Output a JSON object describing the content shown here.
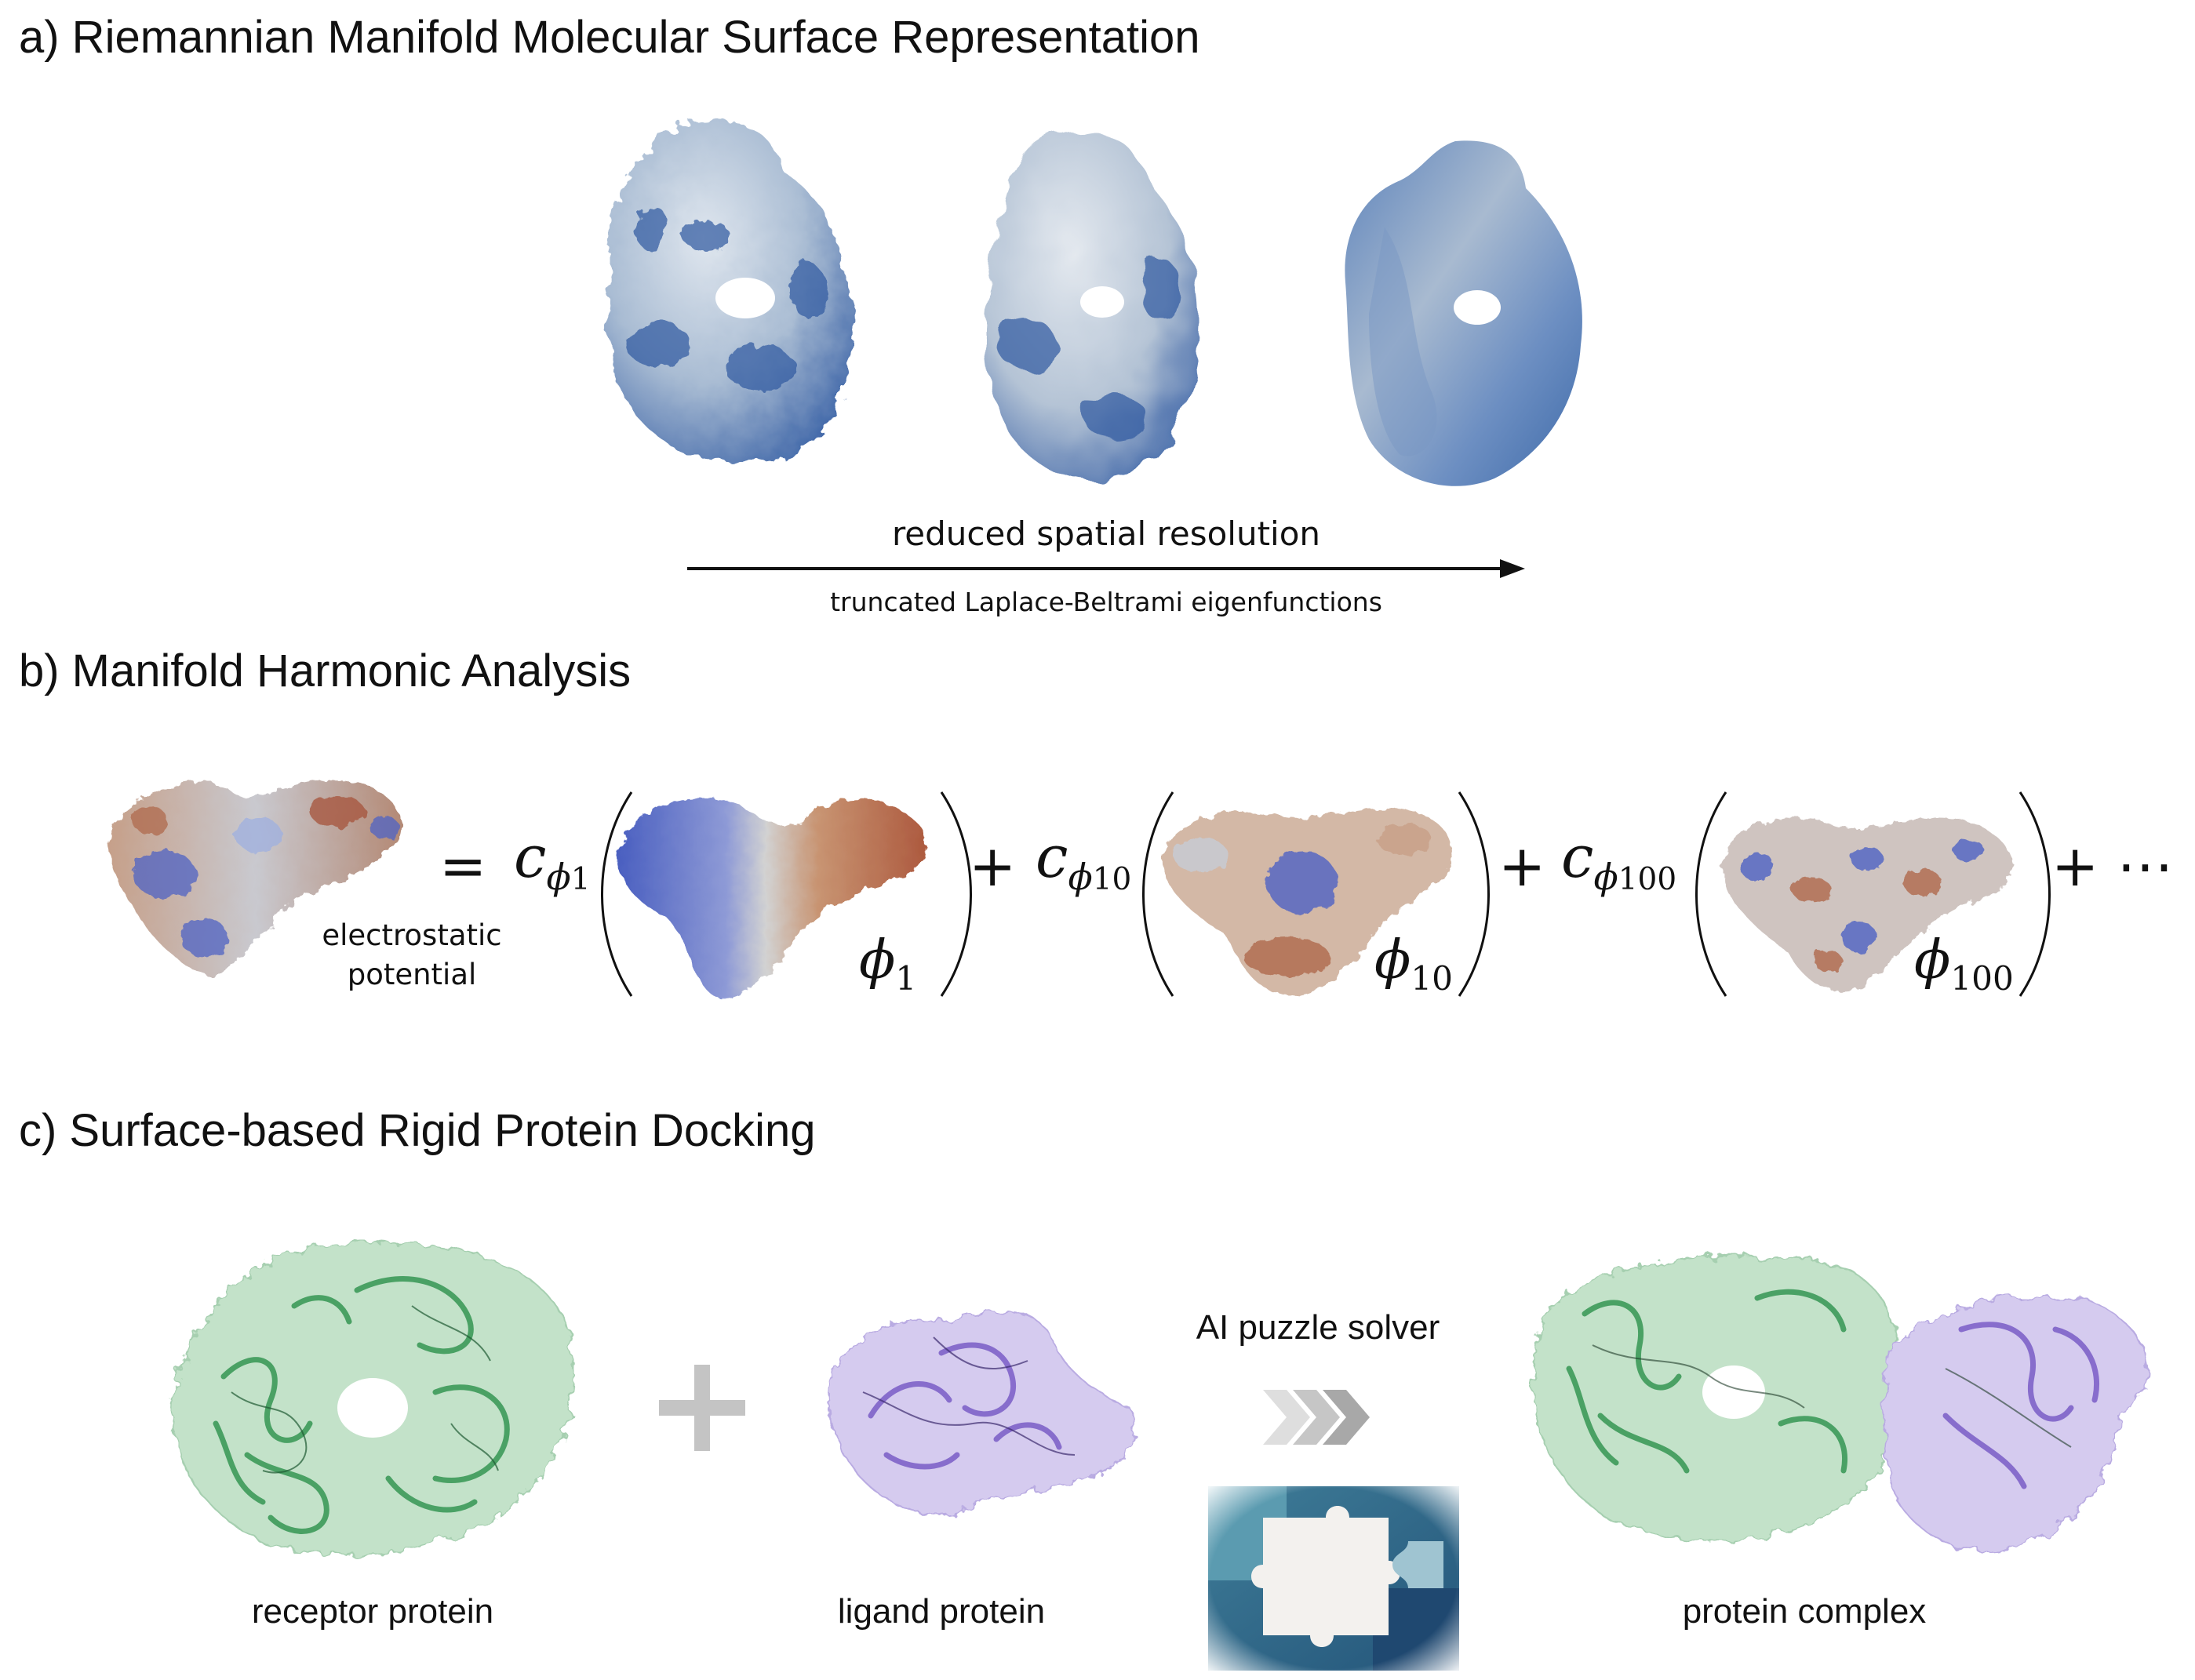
{
  "sections": {
    "a": {
      "title": "a) Riemannian Manifold Molecular Surface Representation",
      "arrow_label": "reduced spatial resolution",
      "arrow_sublabel": "truncated Laplace-Beltrami eigenfunctions"
    },
    "b": {
      "title": "b) Manifold Harmonic Analysis",
      "input_label": "electrostatic\npotential",
      "equals": "=",
      "plus": "+",
      "ellipsis": "+ ⋯",
      "coef_symbol": "c",
      "phi": "ϕ",
      "terms": [
        {
          "index": "1"
        },
        {
          "index": "10"
        },
        {
          "index": "100"
        }
      ]
    },
    "c": {
      "title": "c) Surface-based Rigid Protein Docking",
      "receptor_label": "receptor protein",
      "ligand_label": "ligand protein",
      "solver_label": "AI puzzle solver",
      "complex_label": "protein complex",
      "plus": "+"
    }
  },
  "colors": {
    "surface_blue": "#4a6fb0",
    "surface_light": "#c9d3df",
    "potential_red": "#b45a3c",
    "potential_blue": "#4f63c4",
    "receptor_green": "#3d9a5a",
    "receptor_surface": "#b8dcc0",
    "ligand_purple": "#7f63c9",
    "ligand_surface": "#cfc3ec",
    "chevron_gray": "#b5b5b5",
    "plus_gray": "#c4c4c4"
  }
}
